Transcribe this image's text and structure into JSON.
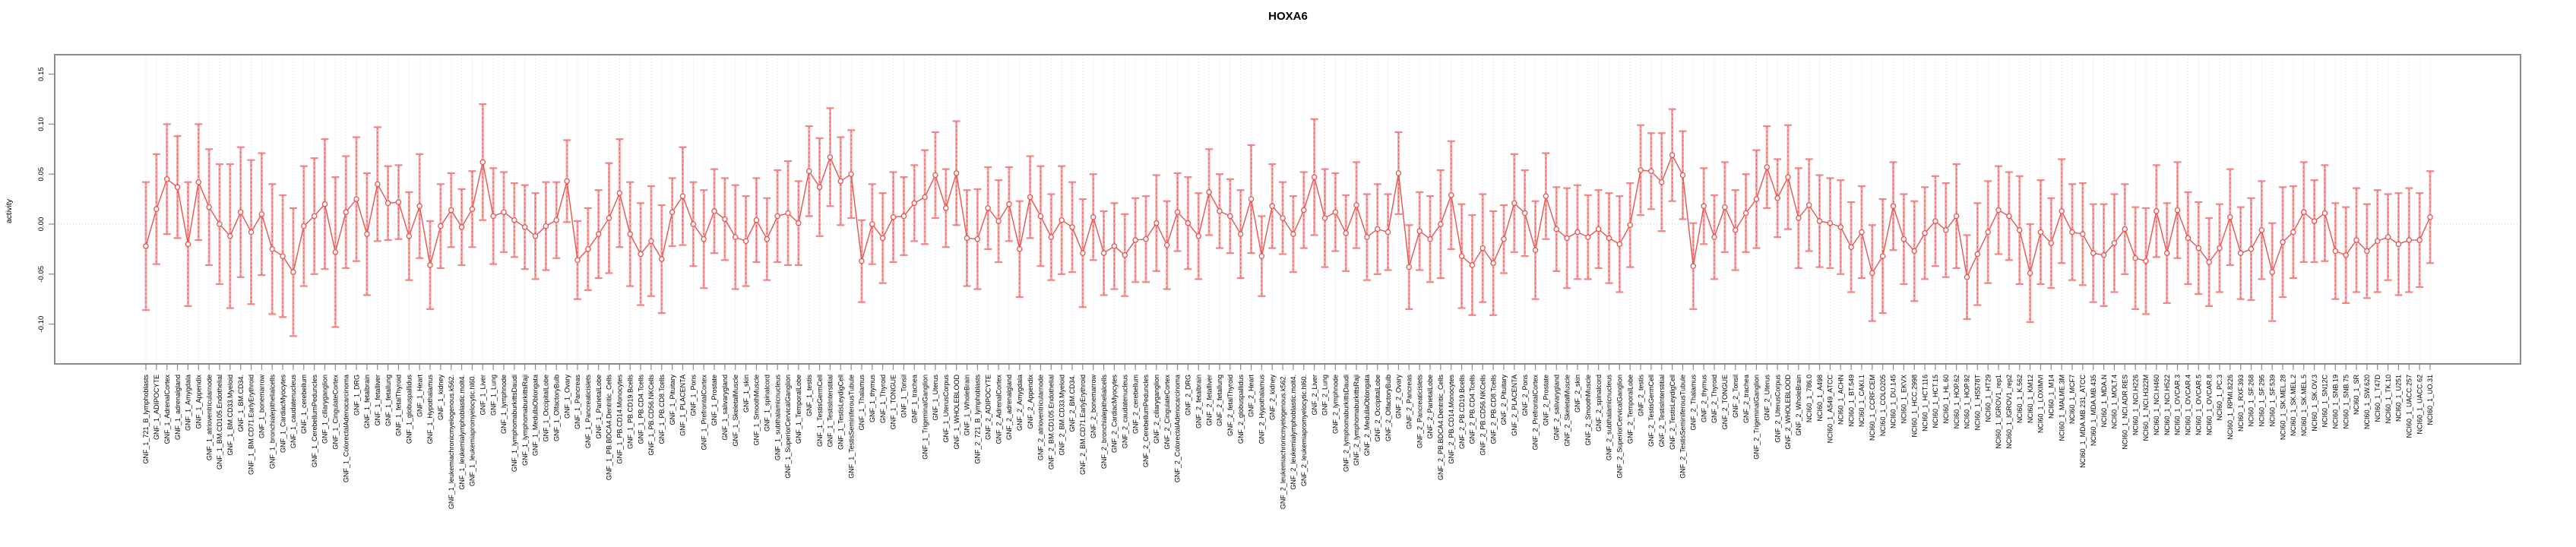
{
  "chart_data": {
    "type": "line",
    "title": "HOXA6",
    "xlabel": "",
    "ylabel": "activity",
    "ylim": [
      -0.14,
      0.17
    ],
    "ytick_values": [
      0.15,
      0.1,
      0.05,
      0.0,
      -0.05,
      -0.1
    ],
    "ytick_labels": [
      "0.15",
      "0.10",
      "0.05",
      "0.00",
      "-0.05",
      "-0.10"
    ],
    "grid": "vertical-dotted-per-category",
    "zero_line": true,
    "legend": "none",
    "style": "points-with-symmetric-error-bars-connected-by-line",
    "marker": "open-circle",
    "categories": [
      "GNF_1_721_B_lymphoblasts",
      "GNF_1_ADIPOCYTE",
      "GNF_1_AdrenalCortex",
      "GNF_1_adrenalgland",
      "GNF_1_Amygdala",
      "GNF_1_Appendix",
      "GNF_1_atrioventricularnode",
      "GNF_1_BM.CD105.Endothelial",
      "GNF_1_BM.CD33.Myeloid",
      "GNF_1_BM.CD34.",
      "GNF_1_BM.CD71.EarlyErythroid",
      "GNF_1_bonemarrow",
      "GNF_1_bronchialepithelialcells",
      "GNF_1_CardiacMyocytes",
      "GNF_1_caudatenucleus",
      "GNF_1_cerebellum",
      "GNF_1_CerebellumPeduncles",
      "GNF_1_ciliaryganglion",
      "GNF_1_CingulateCortex",
      "GNF_1_ColorectalAdenocarcinoma",
      "GNF_1_DRG",
      "GNF_1_fetalbrain",
      "GNF_1_fetalliver",
      "GNF_1_fetallung",
      "GNF_1_fetalThyroid",
      "GNF_1_globuspallidus",
      "GNF_1_Heart",
      "GNF_1_Hypothalamus",
      "GNF_1_kidney",
      "GNF_1_leukemiachronicmyelogenous.k562.",
      "GNF_1_leukemialymphoblastic.molt4.",
      "GNF_1_leukemiapromyelocytic.hl60.",
      "GNF_1_Liver",
      "GNF_1_Lung",
      "GNF_1_lymphnode",
      "GNF_1_lymphomaburkittsDaudi",
      "GNF_1_lymphomaburkittsRaji",
      "GNF_1_MedullaOblongata",
      "GNF_1_OccipitalLobe",
      "GNF_1_OlfactoryBulb",
      "GNF_1_Ovary",
      "GNF_1_Pancreas",
      "GNF_1_Pancreaticislets",
      "GNF_1_ParietalLobe",
      "GNF_1_PB.BDCA4.Dentritic_Cells",
      "GNF_1_PB.CD14.Monocytes",
      "GNF_1_PB.CD19.Bcells",
      "GNF_1_PB.CD4.Tcells",
      "GNF_1_PB.CD56.NKCells",
      "GNF_1_PB.CD8.Tcells",
      "GNF_1_Pituitary",
      "GNF_1_PLACENTA",
      "GNF_1_Pons",
      "GNF_1_PrefrontalCortex",
      "GNF_1_Prostate",
      "GNF_1_salivarygland",
      "GNF_1_SkeletalMuscle",
      "GNF_1_skin",
      "GNF_1_SmoothMuscle",
      "GNF_1_spinalcord",
      "GNF_1_subthalamicnucleus",
      "GNF_1_SuperiorCervicalGanglion",
      "GNF_1_TemporalLobe",
      "GNF_1_testis",
      "GNF_1_TestisGermCell",
      "GNF_1_TestisInterstitial",
      "GNF_1_TestisLeydigCell",
      "GNF_1_TestisSeminiferousTubule",
      "GNF_1_Thalamus",
      "GNF_1_thymus",
      "GNF_1_Thyroid",
      "GNF_1_TONGUE",
      "GNF_1_Tonsil",
      "GNF_1_trachea",
      "GNF_1_TrigeminalGanglion",
      "GNF_1_Uterus",
      "GNF_1_UterusCorpus",
      "GNF_1_WHOLEBLOOD",
      "GNF_1_WholeBrain",
      "GNF_2_721_B_lymphoblasts",
      "GNF_2_ADIPOCYTE",
      "GNF_2_AdrenalCortex",
      "GNF_2_adrenalgland",
      "GNF_2_Amygdala",
      "GNF_2_Appendix",
      "GNF_2_atrioventricularnode",
      "GNF_2_BM.CD105.Endothelial",
      "GNF_2_BM.CD33.Myeloid",
      "GNF_2_BM.CD34.",
      "GNF_2_BM.CD71.EarlyErythroid",
      "GNF_2_bonemarrow",
      "GNF_2_bronchialepithelialcells",
      "GNF_2_CardiacMyocytes",
      "GNF_2_caudatenucleus",
      "GNF_2_cerebellum",
      "GNF_2_CerebellumPeduncles",
      "GNF_2_ciliaryganglion",
      "GNF_2_CingulateCortex",
      "GNF_2_ColorectalAdenocarcinoma",
      "GNF_2_DRG",
      "GNF_2_fetalbrain",
      "GNF_2_fetalliver",
      "GNF_2_fetallung",
      "GNF_2_fetalThyroid",
      "GNF_2_globuspallidus",
      "GNF_2_Heart",
      "GNF_2_Hypothalamus",
      "GNF_2_kidney",
      "GNF_2_leukemiachronicmyelogenous.k562.",
      "GNF_2_leukemialymphoblastic.molt4.",
      "GNF_2_leukemiapromyelocytic.hl60.",
      "GNF_2_Liver",
      "GNF_2_Lung",
      "GNF_2_lymphnode",
      "GNF_2_lymphomaburkittsDaudi",
      "GNF_2_lymphomaburkittsRaji",
      "GNF_2_MedullaOblongata",
      "GNF_2_OccipitalLobe",
      "GNF_2_OlfactoryBulb",
      "GNF_2_Ovary",
      "GNF_2_Pancreas",
      "GNF_2_Pancreaticislets",
      "GNF_2_ParietalLobe",
      "GNF_2_PB.BDCA4.Dentritic_Cells",
      "GNF_2_PB.CD14.Monocytes",
      "GNF_2_PB.CD19.Bcells",
      "GNF_2_PB.CD4.Tcells",
      "GNF_2_PB.CD56.NKCells",
      "GNF_2_PB.CD8.Tcells",
      "GNF_2_Pituitary",
      "GNF_2_PLACENTA",
      "GNF_2_Pons",
      "GNF_2_PrefrontalCortex",
      "GNF_2_Prostate",
      "GNF_2_salivarygland",
      "GNF_2_SkeletalMuscle",
      "GNF_2_skin",
      "GNF_2_SmoothMuscle",
      "GNF_2_spinalcord",
      "GNF_2_subthalamicnucleus",
      "GNF_2_SuperiorCervicalGanglion",
      "GNF_2_TemporalLobe",
      "GNF_2_testis",
      "GNF_2_TestisGermCell",
      "GNF_2_TestisInterstitial",
      "GNF_2_TestisLeydigCell",
      "GNF_2_TestisSeminiferousTubule",
      "GNF_2_Thalamus",
      "GNF_2_thymus",
      "GNF_2_Thyroid",
      "GNF_2_TONGUE",
      "GNF_2_Tonsil",
      "GNF_2_trachea",
      "GNF_2_TrigeminalGanglion",
      "GNF_2_Uterus",
      "GNF_2_UterusCorpus",
      "GNF_2_WHOLEBLOOD",
      "GNF_2_WholeBrain",
      "NCI60_1_786.0",
      "NCI60_1_A498",
      "NCI60_1_A549_ATCC",
      "NCI60_1_ACHN",
      "NCI60_1_BT.549",
      "NCI60_1_CAKI.1",
      "NCI60_1_CCRF.CEM",
      "NCI60_1_COLO205",
      "NCI60_1_DU.145",
      "NCI60_1_EKVX",
      "NCI60_1_HCC.2998",
      "NCI60_1_HCT.116",
      "NCI60_1_HCT.15",
      "NCI60_1_HL.60",
      "NCI60_1_HOP.62",
      "NCI60_1_HOP.92",
      "NCI60_1_HS578T",
      "NCI60_1_HT29",
      "NCI60_1_IGROV1_rep1",
      "NCI60_1_IGROV1_rep2",
      "NCI60_1_K.562",
      "NCI60_1_KM12",
      "NCI60_1_LOXIMVI",
      "NCI60_1_M14",
      "NCI60_1_MALME.3M",
      "NCI60_1_MCF7",
      "NCI60_1_MDA.MB.231_ATCC",
      "NCI60_1_MDA.MB.435",
      "NCI60_1_MDA.N",
      "NCI60_1_MOLT.4",
      "NCI60_1_NCI.ADR.RES",
      "NCI60_1_NCI.H226",
      "NCI60_1_NCI.H322M",
      "NCI60_1_NCI.H460",
      "NCI60_1_NCI.H522",
      "NCI60_1_OVCAR.3",
      "NCI60_1_OVCAR.4",
      "NCI60_1_OVCAR.5",
      "NCI60_1_OVCAR.8",
      "NCI60_1_PC.3",
      "NCI60_1_RPMI.8226",
      "NCI60_1_RXF.393",
      "NCI60_1_SF.268",
      "NCI60_1_SF.295",
      "NCI60_1_SF.539",
      "NCI60_1_SK.MEL.28",
      "NCI60_1_SK.MEL.2",
      "NCI60_1_SK.MEL.5",
      "NCI60_1_SK.OV.3",
      "NCI60_1_SN12C",
      "NCI60_1_SNB.19",
      "NCI60_1_SNB.75",
      "NCI60_1_SR",
      "NCI60_1_SW.620",
      "NCI60_1_T47D",
      "NCI60_1_TK.10",
      "NCI60_1_U251",
      "NCI60_1_UACC.257",
      "NCI60_1_UACC.62",
      "NCI60_1_UO.31"
    ],
    "values": [
      -0.022,
      0.015,
      0.045,
      0.037,
      -0.02,
      0.042,
      0.017,
      0.0,
      -0.012,
      0.012,
      -0.008,
      0.01,
      -0.025,
      -0.032,
      -0.048,
      -0.002,
      0.008,
      0.02,
      -0.028,
      0.012,
      0.025,
      -0.01,
      0.04,
      0.021,
      0.022,
      -0.012,
      0.018,
      -0.041,
      -0.002,
      0.014,
      -0.003,
      0.015,
      0.062,
      0.008,
      0.012,
      0.004,
      -0.003,
      -0.012,
      -0.002,
      0.004,
      0.043,
      -0.036,
      -0.025,
      -0.01,
      0.006,
      0.031,
      -0.01,
      -0.03,
      -0.017,
      -0.035,
      0.012,
      0.028,
      0.0,
      -0.015,
      0.013,
      0.005,
      -0.013,
      -0.017,
      0.004,
      -0.015,
      0.008,
      0.011,
      0.001,
      0.053,
      0.037,
      0.067,
      0.043,
      0.05,
      -0.037,
      0.0,
      -0.014,
      0.007,
      0.008,
      0.021,
      0.027,
      0.049,
      0.016,
      0.051,
      -0.014,
      -0.015,
      0.016,
      0.003,
      0.02,
      -0.025,
      0.027,
      0.008,
      -0.013,
      0.004,
      -0.003,
      -0.029,
      0.007,
      -0.029,
      -0.022,
      -0.031,
      -0.016,
      -0.015,
      0.001,
      -0.021,
      0.012,
      0.001,
      -0.012,
      0.032,
      0.013,
      0.008,
      -0.01,
      0.025,
      -0.032,
      0.018,
      0.006,
      -0.01,
      0.014,
      0.047,
      0.006,
      0.012,
      -0.009,
      0.019,
      -0.013,
      -0.005,
      -0.008,
      0.051,
      -0.043,
      -0.007,
      -0.015,
      0.0,
      0.029,
      -0.032,
      -0.041,
      -0.024,
      -0.039,
      -0.015,
      0.021,
      0.011,
      -0.026,
      0.028,
      -0.005,
      -0.014,
      -0.008,
      -0.013,
      -0.005,
      -0.014,
      -0.02,
      -0.001,
      0.054,
      0.053,
      0.042,
      0.069,
      0.049,
      -0.042,
      0.018,
      -0.013,
      0.017,
      -0.006,
      0.011,
      0.025,
      0.057,
      0.026,
      0.047,
      0.006,
      0.019,
      0.003,
      0.001,
      -0.003,
      -0.023,
      -0.008,
      -0.049,
      -0.032,
      0.018,
      -0.015,
      -0.027,
      -0.009,
      0.003,
      -0.006,
      0.008,
      -0.053,
      -0.03,
      -0.008,
      0.014,
      0.008,
      -0.006,
      -0.049,
      -0.008,
      -0.019,
      0.013,
      -0.008,
      -0.01,
      -0.029,
      -0.031,
      -0.019,
      -0.005,
      -0.034,
      -0.037,
      0.013,
      -0.029,
      0.014,
      -0.014,
      -0.024,
      -0.038,
      -0.024,
      0.007,
      -0.029,
      -0.025,
      -0.006,
      -0.048,
      -0.018,
      -0.008,
      0.012,
      0.003,
      0.011,
      -0.027,
      -0.031,
      -0.016,
      -0.027,
      -0.017,
      -0.013,
      -0.02,
      -0.016,
      -0.016,
      0.007
    ],
    "errors": [
      0.064,
      0.055,
      0.055,
      0.051,
      0.062,
      0.058,
      0.058,
      0.06,
      0.072,
      0.065,
      0.072,
      0.061,
      0.065,
      0.061,
      0.064,
      0.06,
      0.058,
      0.065,
      0.075,
      0.056,
      0.062,
      0.061,
      0.057,
      0.037,
      0.037,
      0.044,
      0.052,
      0.044,
      0.042,
      0.037,
      0.038,
      0.038,
      0.058,
      0.048,
      0.04,
      0.037,
      0.042,
      0.043,
      0.044,
      0.038,
      0.041,
      0.039,
      0.041,
      0.044,
      0.055,
      0.054,
      0.052,
      0.051,
      0.055,
      0.054,
      0.034,
      0.049,
      0.042,
      0.049,
      0.042,
      0.041,
      0.052,
      0.045,
      0.042,
      0.041,
      0.046,
      0.052,
      0.042,
      0.045,
      0.049,
      0.049,
      0.044,
      0.044,
      0.041,
      0.04,
      0.045,
      0.045,
      0.039,
      0.038,
      0.047,
      0.043,
      0.039,
      0.052,
      0.048,
      0.05,
      0.041,
      0.041,
      0.037,
      0.048,
      0.041,
      0.05,
      0.043,
      0.054,
      0.045,
      0.054,
      0.043,
      0.042,
      0.043,
      0.041,
      0.042,
      0.043,
      0.048,
      0.044,
      0.039,
      0.046,
      0.043,
      0.043,
      0.037,
      0.037,
      0.044,
      0.054,
      0.04,
      0.042,
      0.036,
      0.038,
      0.038,
      0.058,
      0.049,
      0.039,
      0.038,
      0.043,
      0.043,
      0.045,
      0.038,
      0.041,
      0.042,
      0.039,
      0.043,
      0.054,
      0.054,
      0.052,
      0.05,
      0.054,
      0.052,
      0.034,
      0.049,
      0.043,
      0.049,
      0.043,
      0.042,
      0.05,
      0.047,
      0.042,
      0.039,
      0.045,
      0.048,
      0.042,
      0.045,
      0.038,
      0.049,
      0.046,
      0.044,
      0.043,
      0.038,
      0.042,
      0.045,
      0.04,
      0.039,
      0.049,
      0.041,
      0.039,
      0.052,
      0.05,
      0.046,
      0.046,
      0.045,
      0.047,
      0.045,
      0.046,
      0.048,
      0.057,
      0.044,
      0.045,
      0.05,
      0.046,
      0.045,
      0.047,
      0.052,
      0.042,
      0.051,
      0.051,
      0.044,
      0.044,
      0.054,
      0.049,
      0.052,
      0.045,
      0.052,
      0.048,
      0.051,
      0.049,
      0.051,
      0.049,
      0.045,
      0.051,
      0.053,
      0.046,
      0.05,
      0.048,
      0.046,
      0.046,
      0.044,
      0.044,
      0.048,
      0.046,
      0.051,
      0.049,
      0.049,
      0.055,
      0.046,
      0.05,
      0.041,
      0.048,
      0.048,
      0.048,
      0.052,
      0.047,
      0.051,
      0.043,
      0.051,
      0.052,
      0.047,
      0.046
    ]
  },
  "colors": {
    "series": "#e8534e",
    "error_bar": "#f7a8a8",
    "error_cap": "#f18585",
    "grid": "#d4d4d4",
    "zero_line": "#c8c8c8",
    "axis": "#8a8a8a",
    "text": "#000000",
    "background": "#ffffff"
  }
}
